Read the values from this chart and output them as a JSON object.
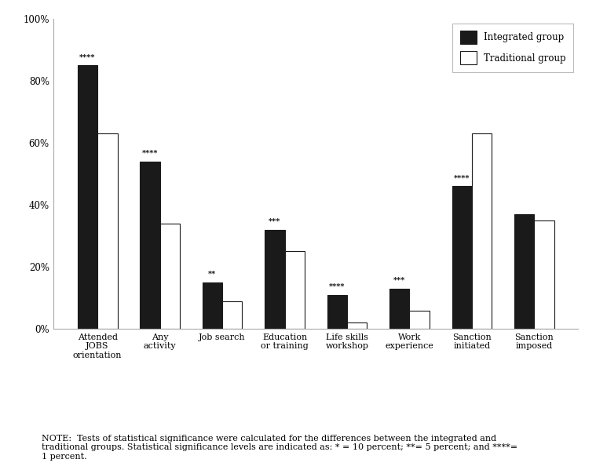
{
  "categories": [
    "Attended\nJOBS\norientation",
    "Any\nactivity",
    "Job search",
    "Education\nor training",
    "Life skills\nworkshop",
    "Work\nexperience",
    "Sanction\ninitiated",
    "Sanction\nimposed"
  ],
  "integrated": [
    85,
    54,
    15,
    32,
    11,
    13,
    46,
    37
  ],
  "traditional": [
    63,
    34,
    9,
    25,
    2,
    6,
    63,
    35
  ],
  "significance": [
    "****",
    "****",
    "**",
    "***",
    "****",
    "***",
    "****",
    ""
  ],
  "integrated_color": "#1a1a1a",
  "traditional_color": "#ffffff",
  "bar_edge_color": "#1a1a1a",
  "ylim": [
    0,
    100
  ],
  "yticks": [
    0,
    20,
    40,
    60,
    80,
    100
  ],
  "ytick_labels": [
    "0%",
    "20%",
    "40%",
    "60%",
    "80%",
    "100%"
  ],
  "legend_integrated": "Integrated group",
  "legend_traditional": "Traditional group",
  "note": "NOTE:  Tests of statistical significance were calculated for the differences between the integrated and\ntraditional groups. Statistical significance levels are indicated as: * = 10 percent; **= 5 percent; and ****=\n1 percent.",
  "bar_width": 0.32,
  "label_fontsize": 8,
  "tick_fontsize": 8.5,
  "note_fontsize": 8,
  "sig_fontsize": 7
}
